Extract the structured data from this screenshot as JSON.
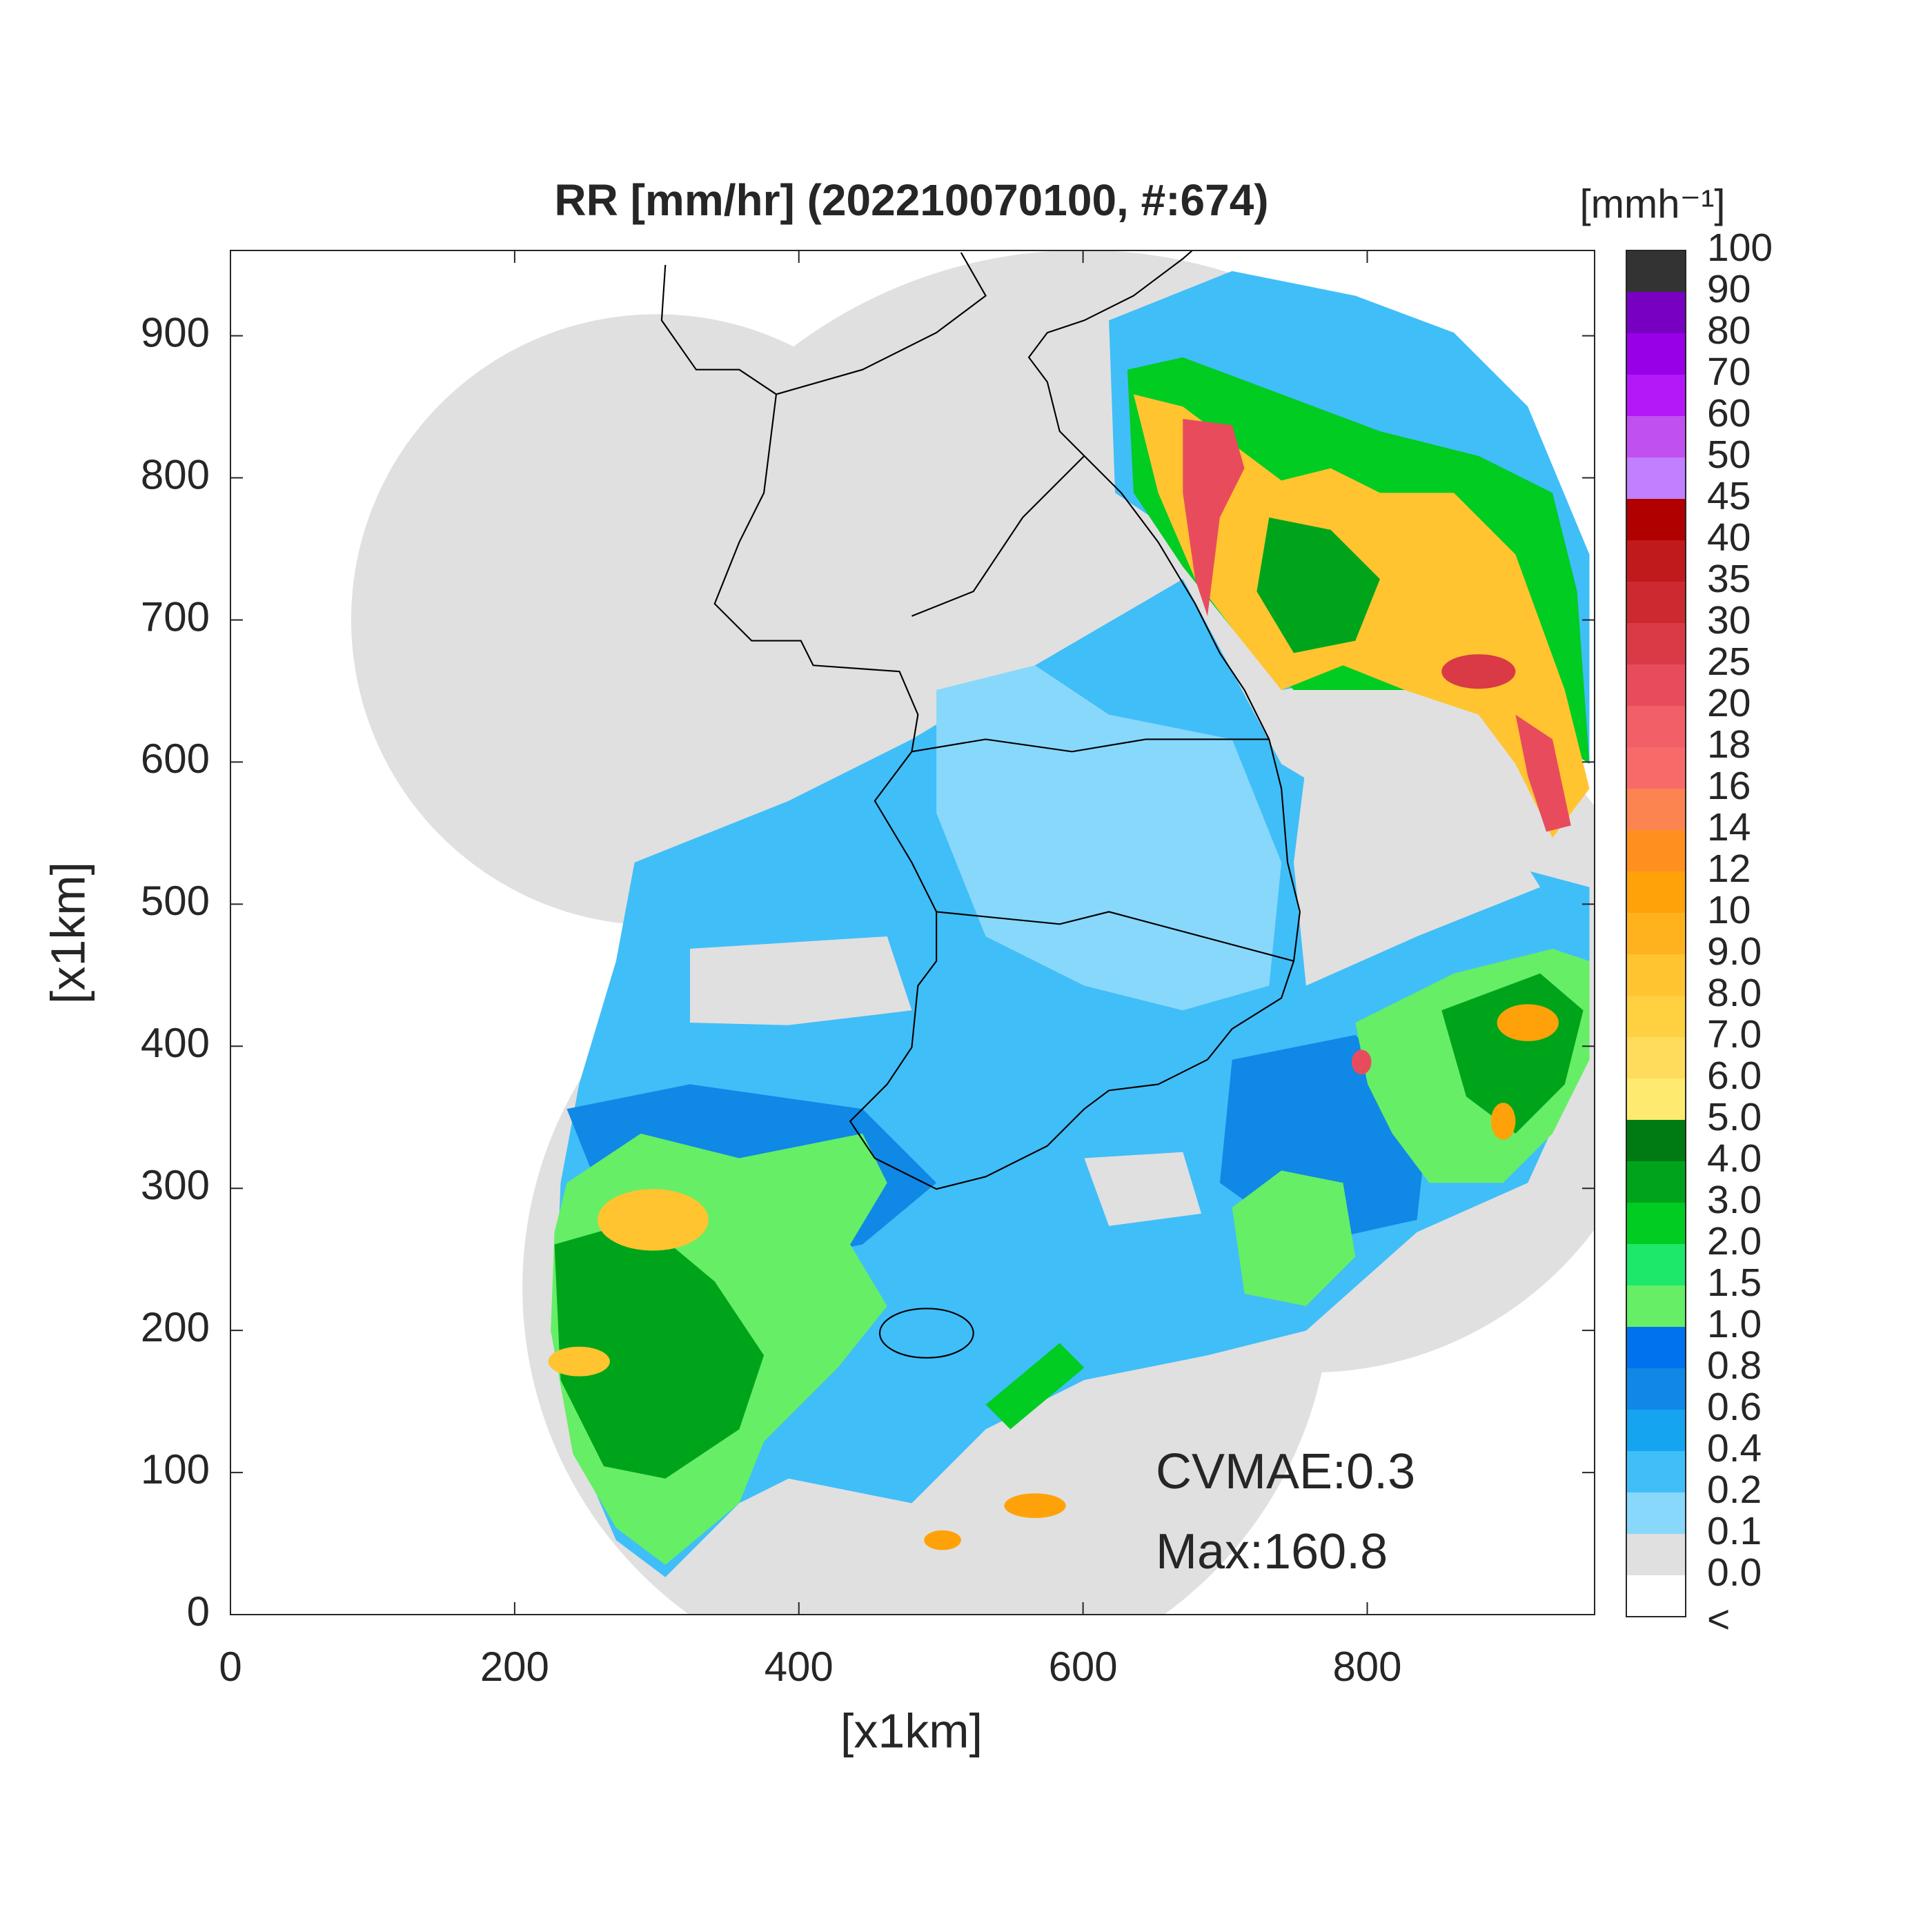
{
  "chart_data": {
    "type": "radar-map",
    "title": "RR [mm/hr] (202210070100, #:674)",
    "xlabel": "[x1km]",
    "ylabel": "[x1km]",
    "xlim": [
      0,
      960
    ],
    "ylim": [
      0,
      960
    ],
    "xticks": [
      0,
      200,
      400,
      600,
      800
    ],
    "yticks": [
      0,
      100,
      200,
      300,
      400,
      500,
      600,
      700,
      800,
      900
    ],
    "annotations": [
      "CVMAE:0.3",
      "Max:160.8"
    ],
    "colorbar": {
      "label": "[mmh⁻¹]",
      "ticks": [
        "<",
        "0.0",
        "0.1",
        "0.2",
        "0.4",
        "0.6",
        "0.8",
        "1.0",
        "1.5",
        "2.0",
        "3.0",
        "4.0",
        "5.0",
        "6.0",
        "7.0",
        "8.0",
        "9.0",
        "10",
        "12",
        "14",
        "16",
        "18",
        "20",
        "25",
        "30",
        "35",
        "40",
        "45",
        "50",
        "60",
        "70",
        "80",
        "90",
        "100"
      ],
      "colors": [
        "#ffffff",
        "#e0e0e0",
        "#88d8fc",
        "#40bef8",
        "#14a4f0",
        "#1088e6",
        "#0072ee",
        "#66ee66",
        "#1de86a",
        "#00cc22",
        "#00a41a",
        "#007a12",
        "#ffea70",
        "#ffdc5c",
        "#ffd040",
        "#ffc430",
        "#ffb21e",
        "#ffa20a",
        "#ff9020",
        "#fc8450",
        "#f86a6a",
        "#f25f66",
        "#e84c5c",
        "#d93a46",
        "#cc2a30",
        "#c01a1c",
        "#b00000",
        "#c080ff",
        "#c050f0",
        "#b418f8",
        "#9800e8",
        "#7800c0",
        "#333333"
      ]
    }
  }
}
